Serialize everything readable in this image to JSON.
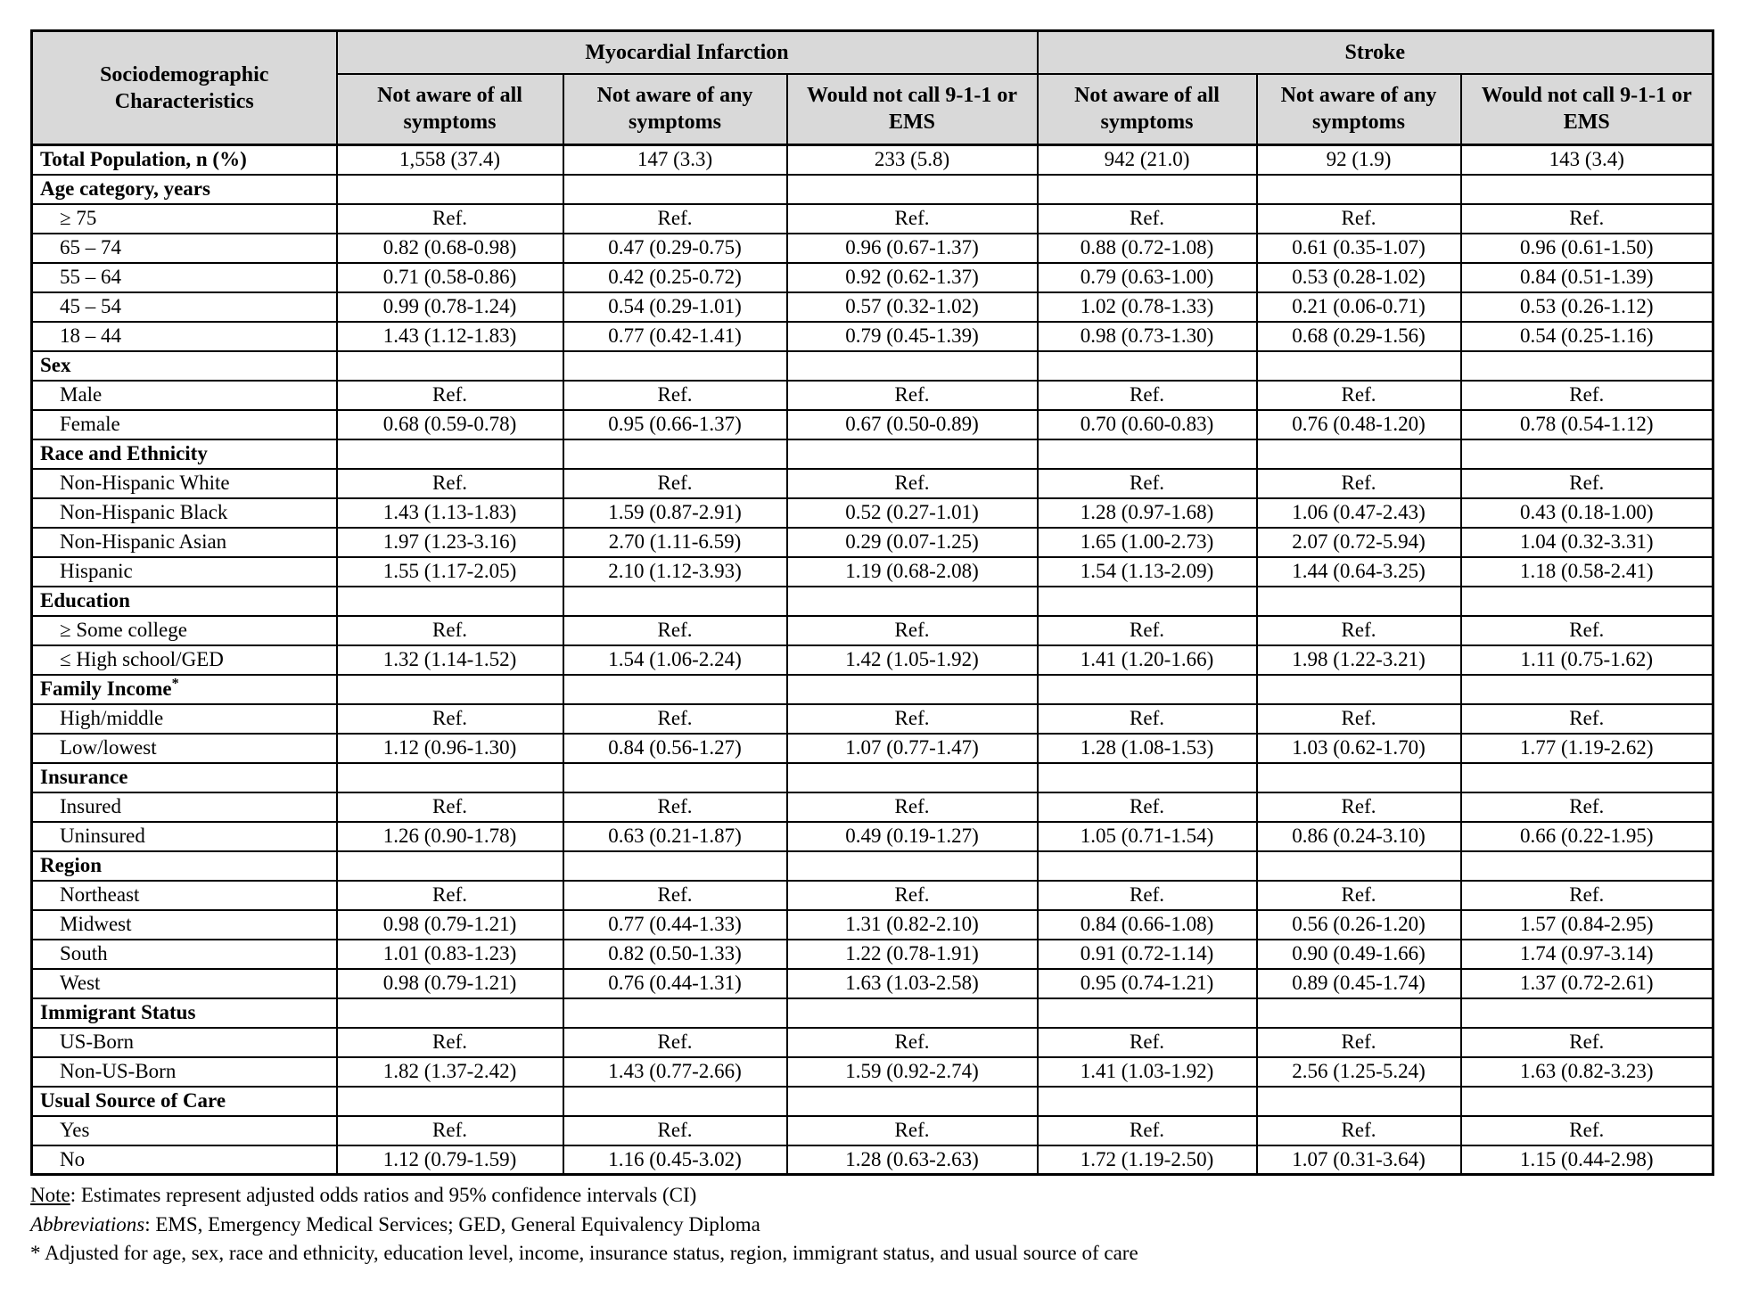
{
  "table": {
    "stub_header": "Sociodemographic Characteristics",
    "groups": [
      {
        "label": "Myocardial Infarction",
        "columns": [
          "Not aware of all symptoms",
          "Not aware of any symptoms",
          "Would not call 9-1-1 or EMS"
        ]
      },
      {
        "label": "Stroke",
        "columns": [
          "Not aware of all symptoms",
          "Not aware of any symptoms",
          "Would not call 9-1-1 or EMS"
        ]
      }
    ],
    "rows": [
      {
        "type": "total",
        "label": "Total Population, n (%)",
        "values": [
          "1,558 (37.4)",
          "147 (3.3)",
          "233 (5.8)",
          "942 (21.0)",
          "92 (1.9)",
          "143 (3.4)"
        ]
      },
      {
        "type": "section",
        "label": "Age category, years",
        "values": [
          "",
          "",
          "",
          "",
          "",
          ""
        ]
      },
      {
        "type": "data",
        "label": "≥ 75",
        "values": [
          "Ref.",
          "Ref.",
          "Ref.",
          "Ref.",
          "Ref.",
          "Ref."
        ]
      },
      {
        "type": "data",
        "label": "65 – 74",
        "values": [
          "0.82 (0.68-0.98)",
          "0.47 (0.29-0.75)",
          "0.96 (0.67-1.37)",
          "0.88 (0.72-1.08)",
          "0.61 (0.35-1.07)",
          "0.96 (0.61-1.50)"
        ]
      },
      {
        "type": "data",
        "label": "55 – 64",
        "values": [
          "0.71 (0.58-0.86)",
          "0.42 (0.25-0.72)",
          "0.92 (0.62-1.37)",
          "0.79 (0.63-1.00)",
          "0.53 (0.28-1.02)",
          "0.84 (0.51-1.39)"
        ]
      },
      {
        "type": "data",
        "label": "45 – 54",
        "values": [
          "0.99 (0.78-1.24)",
          "0.54 (0.29-1.01)",
          "0.57 (0.32-1.02)",
          "1.02 (0.78-1.33)",
          "0.21 (0.06-0.71)",
          "0.53 (0.26-1.12)"
        ]
      },
      {
        "type": "data",
        "label": "18 – 44",
        "values": [
          "1.43 (1.12-1.83)",
          "0.77 (0.42-1.41)",
          "0.79 (0.45-1.39)",
          "0.98 (0.73-1.30)",
          "0.68 (0.29-1.56)",
          "0.54 (0.25-1.16)"
        ]
      },
      {
        "type": "section",
        "label": "Sex",
        "values": [
          "",
          "",
          "",
          "",
          "",
          ""
        ]
      },
      {
        "type": "data",
        "label": "Male",
        "values": [
          "Ref.",
          "Ref.",
          "Ref.",
          "Ref.",
          "Ref.",
          "Ref."
        ]
      },
      {
        "type": "data",
        "label": "Female",
        "values": [
          "0.68 (0.59-0.78)",
          "0.95 (0.66-1.37)",
          "0.67 (0.50-0.89)",
          "0.70 (0.60-0.83)",
          "0.76 (0.48-1.20)",
          "0.78 (0.54-1.12)"
        ]
      },
      {
        "type": "section",
        "label": "Race and Ethnicity",
        "values": [
          "",
          "",
          "",
          "",
          "",
          ""
        ]
      },
      {
        "type": "data",
        "label": "Non-Hispanic White",
        "values": [
          "Ref.",
          "Ref.",
          "Ref.",
          "Ref.",
          "Ref.",
          "Ref."
        ]
      },
      {
        "type": "data",
        "label": "Non-Hispanic Black",
        "values": [
          "1.43 (1.13-1.83)",
          "1.59 (0.87-2.91)",
          "0.52 (0.27-1.01)",
          "1.28 (0.97-1.68)",
          "1.06 (0.47-2.43)",
          "0.43 (0.18-1.00)"
        ]
      },
      {
        "type": "data",
        "label": "Non-Hispanic Asian",
        "values": [
          "1.97 (1.23-3.16)",
          "2.70 (1.11-6.59)",
          "0.29 (0.07-1.25)",
          "1.65 (1.00-2.73)",
          "2.07 (0.72-5.94)",
          "1.04 (0.32-3.31)"
        ]
      },
      {
        "type": "data",
        "label": "Hispanic",
        "values": [
          "1.55 (1.17-2.05)",
          "2.10 (1.12-3.93)",
          "1.19 (0.68-2.08)",
          "1.54 (1.13-2.09)",
          "1.44 (0.64-3.25)",
          "1.18 (0.58-2.41)"
        ]
      },
      {
        "type": "section",
        "label": "Education",
        "values": [
          "",
          "",
          "",
          "",
          "",
          ""
        ]
      },
      {
        "type": "data",
        "label": "≥ Some college",
        "values": [
          "Ref.",
          "Ref.",
          "Ref.",
          "Ref.",
          "Ref.",
          "Ref."
        ]
      },
      {
        "type": "data",
        "label": "≤ High school/GED",
        "values": [
          "1.32 (1.14-1.52)",
          "1.54 (1.06-2.24)",
          "1.42 (1.05-1.92)",
          "1.41 (1.20-1.66)",
          "1.98 (1.22-3.21)",
          "1.11 (0.75-1.62)"
        ]
      },
      {
        "type": "section",
        "label": "Family Income",
        "sup": "*",
        "values": [
          "",
          "",
          "",
          "",
          "",
          ""
        ]
      },
      {
        "type": "data",
        "label": "High/middle",
        "values": [
          "Ref.",
          "Ref.",
          "Ref.",
          "Ref.",
          "Ref.",
          "Ref."
        ]
      },
      {
        "type": "data",
        "label": "Low/lowest",
        "values": [
          "1.12 (0.96-1.30)",
          "0.84 (0.56-1.27)",
          "1.07 (0.77-1.47)",
          "1.28 (1.08-1.53)",
          "1.03 (0.62-1.70)",
          "1.77 (1.19-2.62)"
        ]
      },
      {
        "type": "section",
        "label": "Insurance",
        "values": [
          "",
          "",
          "",
          "",
          "",
          ""
        ]
      },
      {
        "type": "data",
        "label": "Insured",
        "values": [
          "Ref.",
          "Ref.",
          "Ref.",
          "Ref.",
          "Ref.",
          "Ref."
        ]
      },
      {
        "type": "data",
        "label": "Uninsured",
        "values": [
          "1.26 (0.90-1.78)",
          "0.63 (0.21-1.87)",
          "0.49 (0.19-1.27)",
          "1.05 (0.71-1.54)",
          "0.86 (0.24-3.10)",
          "0.66 (0.22-1.95)"
        ]
      },
      {
        "type": "section",
        "label": "Region",
        "values": [
          "",
          "",
          "",
          "",
          "",
          ""
        ]
      },
      {
        "type": "data",
        "label": "Northeast",
        "values": [
          "Ref.",
          "Ref.",
          "Ref.",
          "Ref.",
          "Ref.",
          "Ref."
        ]
      },
      {
        "type": "data",
        "label": "Midwest",
        "values": [
          "0.98 (0.79-1.21)",
          "0.77 (0.44-1.33)",
          "1.31 (0.82-2.10)",
          "0.84 (0.66-1.08)",
          "0.56 (0.26-1.20)",
          "1.57 (0.84-2.95)"
        ]
      },
      {
        "type": "data",
        "label": "South",
        "values": [
          "1.01 (0.83-1.23)",
          "0.82 (0.50-1.33)",
          "1.22 (0.78-1.91)",
          "0.91 (0.72-1.14)",
          "0.90 (0.49-1.66)",
          "1.74 (0.97-3.14)"
        ]
      },
      {
        "type": "data",
        "label": "West",
        "values": [
          "0.98 (0.79-1.21)",
          "0.76 (0.44-1.31)",
          "1.63 (1.03-2.58)",
          "0.95 (0.74-1.21)",
          "0.89 (0.45-1.74)",
          "1.37 (0.72-2.61)"
        ]
      },
      {
        "type": "section",
        "label": "Immigrant Status",
        "values": [
          "",
          "",
          "",
          "",
          "",
          ""
        ]
      },
      {
        "type": "data",
        "label": "US-Born",
        "values": [
          "Ref.",
          "Ref.",
          "Ref.",
          "Ref.",
          "Ref.",
          "Ref."
        ]
      },
      {
        "type": "data",
        "label": "Non-US-Born",
        "values": [
          "1.82 (1.37-2.42)",
          "1.43 (0.77-2.66)",
          "1.59 (0.92-2.74)",
          "1.41 (1.03-1.92)",
          "2.56 (1.25-5.24)",
          "1.63 (0.82-3.23)"
        ]
      },
      {
        "type": "section",
        "label": "Usual Source of Care",
        "values": [
          "",
          "",
          "",
          "",
          "",
          ""
        ]
      },
      {
        "type": "data",
        "label": "Yes",
        "values": [
          "Ref.",
          "Ref.",
          "Ref.",
          "Ref.",
          "Ref.",
          "Ref."
        ]
      },
      {
        "type": "data",
        "label": "No",
        "values": [
          "1.12 (0.79-1.59)",
          "1.16 (0.45-3.02)",
          "1.28 (0.63-2.63)",
          "1.72 (1.19-2.50)",
          "1.07 (0.31-3.64)",
          "1.15 (0.44-2.98)"
        ]
      }
    ]
  },
  "footnotes": {
    "note_label": "Note",
    "note_rest": ": Estimates represent adjusted odds ratios and 95% confidence intervals (CI)",
    "abbr_label": "Abbreviations",
    "abbr_rest": ": EMS, Emergency Medical Services; GED, General Equivalency Diploma",
    "adjusted_line": "* Adjusted for age, sex, race and ethnicity, education level, income, insurance status, region, immigrant status, and usual source of care"
  },
  "colors": {
    "header_bg": "#d9d9d9",
    "border": "#000000",
    "text": "#000000",
    "background": "#ffffff"
  }
}
